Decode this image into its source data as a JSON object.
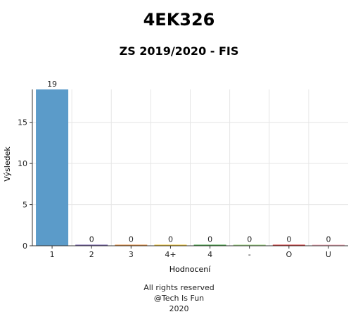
{
  "chart_data": {
    "type": "bar",
    "title": "4EK326",
    "subtitle": "ZS 2019/2020 - FIS",
    "xlabel": "Hodnocení",
    "ylabel": "Výsledek",
    "categories": [
      "1",
      "2",
      "3",
      "4+",
      "4",
      "-",
      "O",
      "U"
    ],
    "values": [
      19,
      0,
      0,
      0,
      0,
      0,
      0,
      0
    ],
    "colors": [
      "#5b9bc9",
      "#6a51a3",
      "#e6852c",
      "#f0c020",
      "#3aa03a",
      "#9ad57e",
      "#d62728",
      "#f7a8b8"
    ],
    "ylim": [
      0,
      19
    ],
    "yticks": [
      0,
      5,
      10,
      15
    ],
    "grid": true,
    "legend": "none"
  },
  "footer": {
    "line1": "All rights reserved",
    "line2": "@Tech Is Fun",
    "line3": "2020"
  }
}
